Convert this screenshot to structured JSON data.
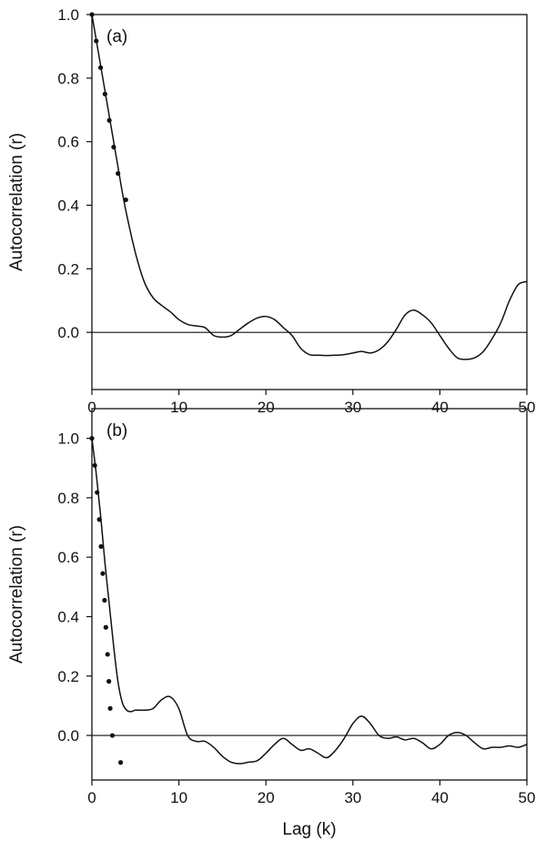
{
  "chart_data": [
    {
      "type": "line",
      "panel_label": "(a)",
      "xlabel": "Lag (k)",
      "ylabel": "Autocorrelation (r)",
      "xlim": [
        0,
        50
      ],
      "ylim": [
        -0.18,
        1.0
      ],
      "xticks": [
        "0",
        "10",
        "20",
        "30",
        "40",
        "50"
      ],
      "yticks": [
        "0.0",
        "0.2",
        "0.4",
        "0.6",
        "0.8",
        "1.0"
      ],
      "reference_line_y": 0,
      "series": [
        {
          "style": "line",
          "x": [
            0,
            0.5,
            1,
            1.5,
            2,
            2.5,
            3,
            3.5,
            4,
            5,
            6,
            7,
            8,
            9,
            10,
            11,
            12,
            13,
            14,
            15,
            16,
            17,
            18,
            19,
            20,
            21,
            22,
            23,
            24,
            25,
            26,
            27,
            28,
            29,
            30,
            31,
            32,
            33,
            34,
            35,
            36,
            37,
            38,
            39,
            40,
            41,
            42,
            43,
            44,
            45,
            46,
            47,
            48,
            49,
            50
          ],
          "y": [
            1.0,
            0.92,
            0.84,
            0.76,
            0.68,
            0.6,
            0.52,
            0.44,
            0.37,
            0.25,
            0.16,
            0.11,
            0.085,
            0.065,
            0.04,
            0.025,
            0.02,
            0.015,
            -0.01,
            -0.015,
            -0.01,
            0.01,
            0.03,
            0.045,
            0.05,
            0.04,
            0.015,
            -0.01,
            -0.05,
            -0.07,
            -0.072,
            -0.073,
            -0.072,
            -0.07,
            -0.065,
            -0.06,
            -0.065,
            -0.055,
            -0.03,
            0.01,
            0.055,
            0.07,
            0.055,
            0.03,
            -0.01,
            -0.05,
            -0.08,
            -0.085,
            -0.08,
            -0.06,
            -0.02,
            0.03,
            0.1,
            0.15,
            0.16
          ]
        },
        {
          "style": "points",
          "x": [
            0,
            0.5,
            1,
            1.5,
            2,
            2.5,
            3,
            3.9
          ],
          "y": [
            1.0,
            0.917,
            0.833,
            0.75,
            0.667,
            0.583,
            0.5,
            0.417
          ]
        }
      ]
    },
    {
      "type": "line",
      "panel_label": "(b)",
      "xlabel": "Lag (k)",
      "ylabel": "Autocorrelation (r)",
      "xlim": [
        0,
        50
      ],
      "ylim": [
        -0.15,
        1.1
      ],
      "xticks": [
        "0",
        "10",
        "20",
        "30",
        "40",
        "50"
      ],
      "yticks": [
        "0.0",
        "0.2",
        "0.4",
        "0.6",
        "0.8",
        "1.0"
      ],
      "reference_line_y": 0,
      "series": [
        {
          "style": "line",
          "x": [
            0,
            0.5,
            1,
            1.5,
            2,
            2.5,
            3,
            3.5,
            4,
            4.5,
            5,
            6,
            7,
            8,
            9,
            10,
            11,
            12,
            13,
            14,
            15,
            16,
            17,
            18,
            19,
            20,
            21,
            22,
            23,
            24,
            25,
            26,
            27,
            28,
            29,
            30,
            31,
            32,
            33,
            34,
            35,
            36,
            37,
            38,
            39,
            40,
            41,
            42,
            43,
            44,
            45,
            46,
            47,
            48,
            49,
            50
          ],
          "y": [
            1.0,
            0.88,
            0.74,
            0.58,
            0.44,
            0.3,
            0.18,
            0.11,
            0.085,
            0.08,
            0.085,
            0.085,
            0.09,
            0.12,
            0.13,
            0.09,
            0.0,
            -0.02,
            -0.02,
            -0.04,
            -0.07,
            -0.09,
            -0.095,
            -0.09,
            -0.085,
            -0.06,
            -0.03,
            -0.01,
            -0.03,
            -0.05,
            -0.045,
            -0.06,
            -0.075,
            -0.05,
            -0.01,
            0.04,
            0.065,
            0.04,
            0.0,
            -0.01,
            -0.005,
            -0.015,
            -0.01,
            -0.025,
            -0.045,
            -0.03,
            0.0,
            0.01,
            0.0,
            -0.025,
            -0.045,
            -0.04,
            -0.04,
            -0.035,
            -0.04,
            -0.03
          ]
        },
        {
          "style": "points",
          "x": [
            0,
            0.33,
            0.6,
            0.85,
            1.05,
            1.25,
            1.45,
            1.6,
            1.8,
            1.95,
            2.1,
            2.35,
            3.3
          ],
          "y": [
            1.0,
            0.909,
            0.818,
            0.727,
            0.636,
            0.545,
            0.455,
            0.364,
            0.273,
            0.182,
            0.091,
            0.0,
            -0.091
          ]
        }
      ]
    }
  ]
}
